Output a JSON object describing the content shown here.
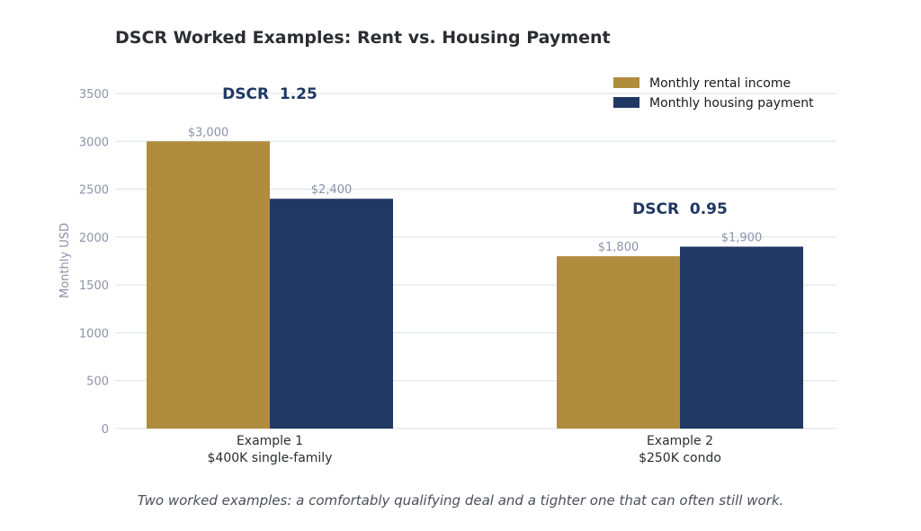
{
  "chart_data": {
    "type": "bar",
    "title": "DSCR Worked Examples: Rent vs. Housing Payment",
    "ylabel": "Monthly USD",
    "xlabel": "",
    "ylim": [
      0,
      3500
    ],
    "yticks": [
      0,
      500,
      1000,
      1500,
      2000,
      2500,
      3000,
      3500
    ],
    "grid": true,
    "legend_position": "top-right",
    "categories": [
      [
        "Example 1",
        "$400K single-family"
      ],
      [
        "Example 2",
        "$250K condo"
      ]
    ],
    "series": [
      {
        "name": "Monthly rental income",
        "color": "#b08c3e",
        "values": [
          3000,
          1800
        ],
        "labels": [
          "$3,000",
          "$1,800"
        ]
      },
      {
        "name": "Monthly housing payment",
        "color": "#1f3864",
        "values": [
          2400,
          1900
        ],
        "labels": [
          "$2,400",
          "$1,900"
        ]
      }
    ],
    "annotations": [
      {
        "text": "DSCR  1.25",
        "category": 0,
        "y": 3500
      },
      {
        "text": "DSCR  0.95",
        "category": 1,
        "y": 2300
      }
    ]
  },
  "caption": "Two worked examples: a comfortably qualifying deal and a tighter one that can often still work."
}
